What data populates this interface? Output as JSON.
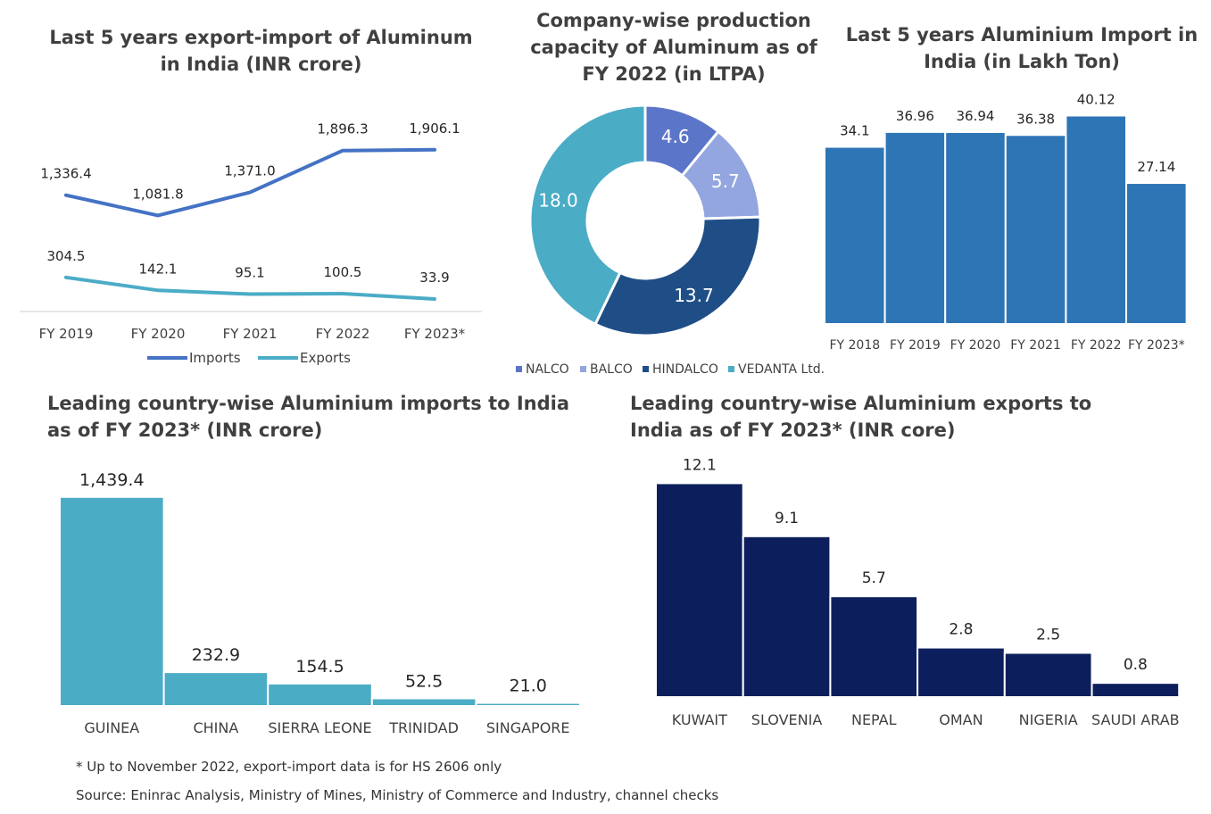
{
  "chart_data": [
    {
      "type": "line",
      "title": "Last 5 years export-import of Aluminum in India (INR crore)",
      "categories": [
        "FY 2019",
        "FY 2020",
        "FY 2021",
        "FY 2022",
        "FY 2023*"
      ],
      "series": [
        {
          "name": "Imports",
          "values": [
            1336.4,
            1081.8,
            1371.0,
            1896.3,
            1906.1
          ],
          "labels": [
            "1,336.4",
            "1,081.8",
            "1,371.0",
            "1,896.3",
            "1,906.1"
          ]
        },
        {
          "name": "Exports",
          "values": [
            304.5,
            142.1,
            95.1,
            100.5,
            33.9
          ],
          "labels": [
            "304.5",
            "142.1",
            "95.1",
            "100.5",
            "33.9"
          ]
        }
      ],
      "legend": "bottom",
      "colors": {
        "Imports": "#4472c4",
        "Exports": "#4bacc6"
      }
    },
    {
      "type": "pie",
      "title": "Company-wise production capacity of Aluminum as of FY 2022 (in LTPA)",
      "categories": [
        "NALCO",
        "BALCO",
        "HINDALCO",
        "VEDANTA Ltd."
      ],
      "values": [
        4.6,
        5.7,
        13.7,
        18.0
      ],
      "labels": [
        "4.6",
        "5.7",
        "13.7",
        "18.0"
      ],
      "colors": [
        "#5b75c9",
        "#93a6df",
        "#1f4e87",
        "#4bacc6"
      ],
      "legend": "bottom"
    },
    {
      "type": "bar",
      "title": "Last 5 years Aluminium Import in India (in Lakh Ton)",
      "categories": [
        "FY 2018",
        "FY 2019",
        "FY 2020",
        "FY 2021",
        "FY 2022",
        "FY 2023*"
      ],
      "values": [
        34.1,
        36.96,
        36.94,
        36.38,
        40.12,
        27.14
      ],
      "labels": [
        "34.1",
        "36.96",
        "36.94",
        "36.38",
        "40.12",
        "27.14"
      ],
      "color": "#2e75b6"
    },
    {
      "type": "bar",
      "title": "Leading country-wise Aluminium imports to India as of FY  2023* (INR crore)",
      "categories": [
        "GUINEA",
        "CHINA",
        "SIERRA LEONE",
        "TRINIDAD",
        "SINGAPORE"
      ],
      "values": [
        1439.4,
        232.9,
        154.5,
        52.5,
        21.0
      ],
      "labels": [
        "1,439.4",
        "232.9",
        "154.5",
        "52.5",
        "21.0"
      ],
      "color": "#4bacc6"
    },
    {
      "type": "bar",
      "title": "Leading country-wise Aluminium exports to India as of FY  2023* (INR core)",
      "categories": [
        "KUWAIT",
        "SLOVENIA",
        "NEPAL",
        "OMAN",
        "NIGERIA",
        "SAUDI ARAB"
      ],
      "values": [
        12.1,
        9.1,
        5.7,
        2.8,
        2.5,
        0.8
      ],
      "labels": [
        "12.1",
        "9.1",
        "5.7",
        "2.8",
        "2.5",
        "0.8"
      ],
      "color": "#0c1f5c"
    }
  ],
  "titles": {
    "line_1": "Last 5 years export-import of Aluminum",
    "line_2": "in India (INR crore)",
    "donut_1": "Company-wise production",
    "donut_2": "capacity of Aluminum as of",
    "donut_3": "FY 2022 (in LTPA)",
    "bar_1": "Last 5 years Aluminium Import in",
    "bar_2": "India (in Lakh Ton)",
    "imp_1": "Leading country-wise Aluminium imports to India",
    "imp_2": "as of FY  2023* (INR crore)",
    "exp_1": "Leading country-wise Aluminium exports to",
    "exp_2": "India as of FY  2023* (INR core)"
  },
  "notes": {
    "footnote": "* Up to November 2022, export-import data is for HS 2606 only",
    "source": "Source: Eninrac Analysis, Ministry of Mines, Ministry of Commerce and Industry, channel checks"
  }
}
